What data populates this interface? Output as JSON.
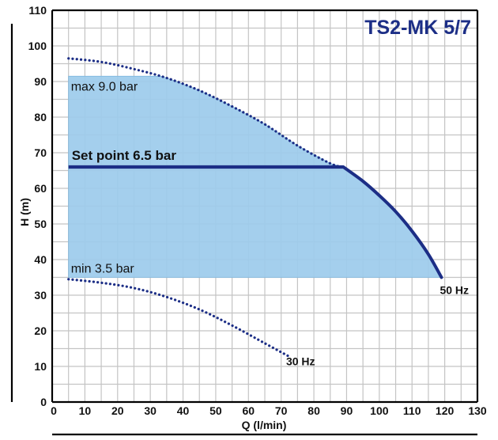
{
  "chart_data": {
    "type": "line",
    "title": "TS2-MK 5/7",
    "xlabel": "Q (l/min)",
    "ylabel": "H (m)",
    "xlim": [
      0,
      130
    ],
    "ylim": [
      0,
      110
    ],
    "xticks": [
      "0",
      "10",
      "20",
      "30",
      "40",
      "50",
      "60",
      "70",
      "80",
      "90",
      "100",
      "110",
      "120",
      "130"
    ],
    "yticks": [
      "0",
      "10",
      "20",
      "30",
      "40",
      "50",
      "60",
      "70",
      "80",
      "90",
      "100",
      "110"
    ],
    "grid": "on",
    "colors": {
      "band": "#9ccbeb",
      "band_edge": "#7fb8df",
      "setpoint": "#1c2e86",
      "curve_50hz": "#1c2e86",
      "curve_30hz": "#1c2e86",
      "title": "#1c2e86",
      "grid": "#c4c4c4"
    },
    "band": {
      "max_label": "max 9.0 bar",
      "min_label": "min 3.5 bar",
      "h_max": 91.5,
      "h_min": 35,
      "q_start": 5
    },
    "setpoint": {
      "label": "Set point 6.5 bar",
      "h": 66,
      "q_start": 5,
      "q_end": 89
    },
    "series": [
      {
        "name": "50 Hz",
        "style": "solid",
        "x": [
          89,
          95,
          100,
          105,
          110,
          115,
          119
        ],
        "y": [
          66,
          62,
          58,
          53.5,
          48,
          41.5,
          35
        ]
      },
      {
        "name": "50 Hz",
        "style": "dotted",
        "x": [
          5,
          15,
          25,
          35,
          45,
          55,
          65,
          75,
          85,
          89
        ],
        "y": [
          96.5,
          95.5,
          93.5,
          91,
          87.5,
          83,
          78,
          72,
          67,
          66
        ]
      },
      {
        "name": "30 Hz",
        "style": "dotted",
        "x": [
          5,
          15,
          25,
          35,
          45,
          55,
          65,
          72
        ],
        "y": [
          34.5,
          33.5,
          32,
          29.5,
          26,
          21.5,
          16.5,
          13
        ]
      }
    ]
  }
}
